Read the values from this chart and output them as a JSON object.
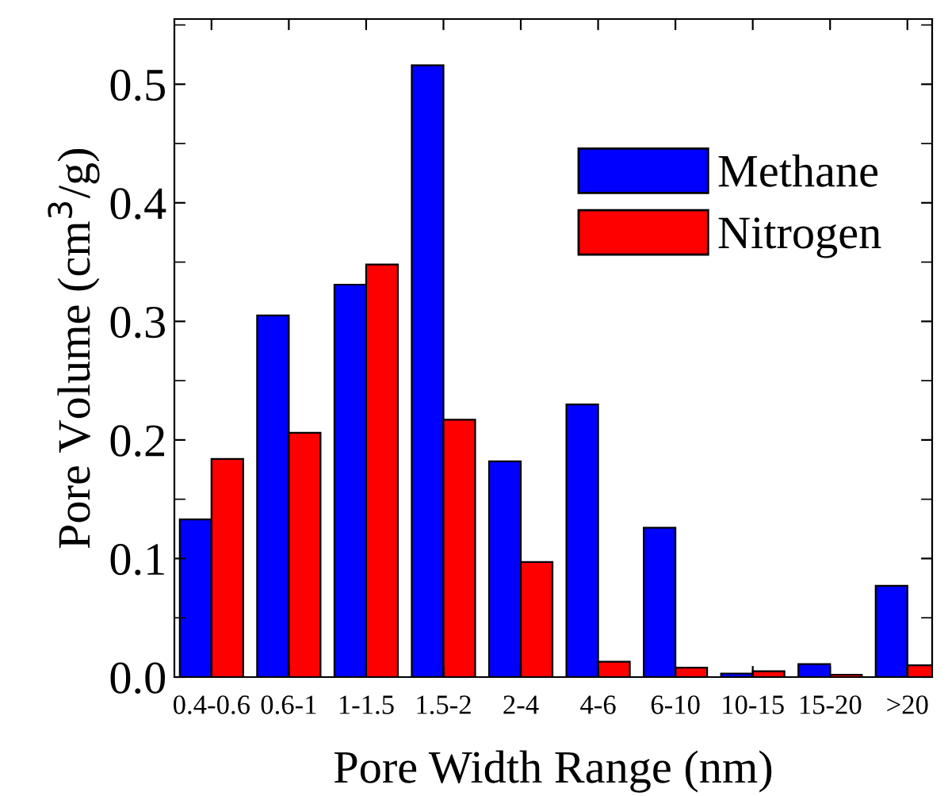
{
  "chart_data": {
    "type": "bar",
    "xlabel": "Pore Width Range (nm)",
    "ylabel": "Pore Volume (cm$^{3}$/g)",
    "categories": [
      "0.4-0.6",
      "0.6-1",
      "1-1.5",
      "1.5-2",
      "2-4",
      "4-6",
      "6-10",
      "10-15",
      "15-20",
      ">20"
    ],
    "series": [
      {
        "name": "Methane",
        "color": "#0000ff",
        "values": [
          0.133,
          0.305,
          0.331,
          0.516,
          0.182,
          0.23,
          0.126,
          0.003,
          0.011,
          0.077
        ]
      },
      {
        "name": "Nitrogen",
        "color": "#ff0000",
        "values": [
          0.184,
          0.206,
          0.348,
          0.217,
          0.097,
          0.013,
          0.008,
          0.005,
          0.002,
          0.01
        ]
      }
    ],
    "ylim": [
      0,
      0.555
    ],
    "yticks": [
      {
        "value": 0,
        "label": "0.0"
      },
      {
        "value": 0.1,
        "label": "0.1"
      },
      {
        "value": 0.2,
        "label": "0.2"
      },
      {
        "value": 0.3,
        "label": "0.3"
      },
      {
        "value": 0.4,
        "label": "0.4"
      },
      {
        "value": 0.5,
        "label": "0.5"
      }
    ],
    "grid": false,
    "legend": "right"
  }
}
